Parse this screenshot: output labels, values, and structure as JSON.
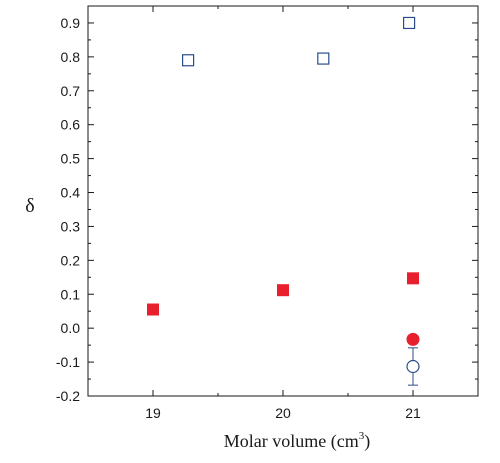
{
  "chart_data": {
    "type": "scatter",
    "title": "",
    "xlabel": "Molar volume (cm",
    "xlabel_sup": "3",
    "xlabel_end": ")",
    "ylabel": "δ",
    "xlim": [
      18.5,
      21.5
    ],
    "ylim": [
      -0.2,
      0.95
    ],
    "xticks": [
      19,
      20,
      21
    ],
    "xtick_labels": [
      "19",
      "20",
      "21"
    ],
    "yticks": [
      -0.2,
      -0.1,
      0.0,
      0.1,
      0.2,
      0.3,
      0.4,
      0.5,
      0.6,
      0.7,
      0.8,
      0.9
    ],
    "ytick_labels": [
      "-0.2",
      "-0.1",
      "0.0",
      "0.1",
      "0.2",
      "0.3",
      "0.4",
      "0.5",
      "0.6",
      "0.7",
      "0.8",
      "0.9"
    ],
    "grid": false,
    "series": [
      {
        "marker": "square-open",
        "color": "#2b4c8c",
        "points": [
          {
            "x": 19.27,
            "y": 0.79
          },
          {
            "x": 20.31,
            "y": 0.795
          },
          {
            "x": 20.97,
            "y": 0.9
          }
        ]
      },
      {
        "marker": "square-filled",
        "color": "#e8202e",
        "points": [
          {
            "x": 19.0,
            "y": 0.055
          },
          {
            "x": 20.0,
            "y": 0.112
          },
          {
            "x": 21.0,
            "y": 0.147
          }
        ]
      },
      {
        "marker": "circle-filled",
        "color": "#e8202e",
        "points": [
          {
            "x": 21.0,
            "y": -0.033
          }
        ]
      },
      {
        "marker": "circle-open",
        "color": "#2b4c8c",
        "points": [
          {
            "x": 21.0,
            "y": -0.113,
            "yerr": 0.055
          }
        ]
      }
    ]
  }
}
